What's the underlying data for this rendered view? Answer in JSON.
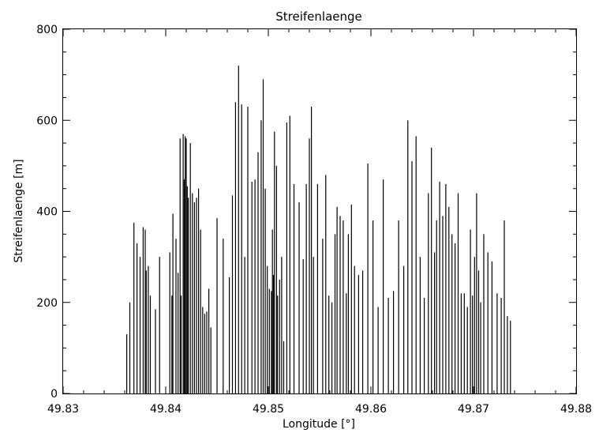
{
  "chart_data": {
    "type": "bar",
    "title": "Streifenlaenge",
    "xlabel": "Longitude [°]",
    "ylabel": "Streifenlaenge [m]",
    "xlim": [
      49.83,
      49.88
    ],
    "ylim": [
      0,
      800
    ],
    "xticks": [
      49.83,
      49.84,
      49.85,
      49.86,
      49.87,
      49.88
    ],
    "xtick_labels": [
      "49.83",
      "49.84",
      "49.85",
      "49.86",
      "49.87",
      "49.88"
    ],
    "yticks": [
      0,
      200,
      400,
      600,
      800
    ],
    "ytick_labels": [
      "0",
      "200",
      "400",
      "600",
      "800"
    ],
    "grid": false,
    "legend": "none",
    "bar_color": "#000000",
    "x": [
      49.8362,
      49.8365,
      49.8369,
      49.8372,
      49.8375,
      49.8378,
      49.838,
      49.8381,
      49.8383,
      49.8385,
      49.839,
      49.8394,
      49.8404,
      49.8406,
      49.8407,
      49.841,
      49.8412,
      49.8414,
      49.8415,
      49.8417,
      49.8418,
      49.8419,
      49.842,
      49.8421,
      49.8422,
      49.8424,
      49.8426,
      49.8428,
      49.843,
      49.8432,
      49.8434,
      49.8436,
      49.8438,
      49.844,
      49.8442,
      49.8444,
      49.845,
      49.8456,
      49.8462,
      49.8465,
      49.8468,
      49.8471,
      49.8474,
      49.8477,
      49.848,
      49.8484,
      49.8487,
      49.849,
      49.8493,
      49.8495,
      49.8497,
      49.8499,
      49.8501,
      49.8503,
      49.8504,
      49.8505,
      49.8506,
      49.8508,
      49.8509,
      49.8511,
      49.8513,
      49.8515,
      49.8518,
      49.8521,
      49.8525,
      49.853,
      49.8534,
      49.8537,
      49.854,
      49.8542,
      49.8544,
      49.8548,
      49.8553,
      49.8556,
      49.8559,
      49.8562,
      49.8565,
      49.8567,
      49.857,
      49.8573,
      49.8576,
      49.8578,
      49.8581,
      49.8584,
      49.8588,
      49.8592,
      49.8597,
      49.8602,
      49.8607,
      49.8612,
      49.8617,
      49.8622,
      49.8627,
      49.8632,
      49.8636,
      49.864,
      49.8644,
      49.8648,
      49.8652,
      49.8656,
      49.8659,
      49.8662,
      49.8664,
      49.8667,
      49.867,
      49.8673,
      49.8676,
      49.8679,
      49.8682,
      49.8685,
      49.8688,
      49.8691,
      49.8694,
      49.8697,
      49.8699,
      49.8701,
      49.8703,
      49.8705,
      49.8707,
      49.871,
      49.8714,
      49.8718,
      49.8723,
      49.8727,
      49.873,
      49.8733,
      49.8736
    ],
    "values": [
      130,
      200,
      375,
      330,
      300,
      365,
      360,
      270,
      280,
      215,
      185,
      300,
      310,
      215,
      395,
      340,
      265,
      560,
      215,
      570,
      470,
      565,
      560,
      455,
      430,
      550,
      440,
      420,
      430,
      450,
      360,
      190,
      175,
      180,
      230,
      145,
      385,
      340,
      255,
      435,
      640,
      720,
      635,
      300,
      630,
      465,
      470,
      530,
      600,
      690,
      450,
      280,
      230,
      225,
      360,
      260,
      575,
      500,
      215,
      250,
      300,
      115,
      595,
      610,
      460,
      420,
      295,
      460,
      560,
      630,
      300,
      460,
      340,
      480,
      215,
      200,
      350,
      410,
      390,
      380,
      220,
      350,
      415,
      280,
      260,
      270,
      505,
      380,
      190,
      470,
      210,
      225,
      380,
      280,
      600,
      510,
      565,
      300,
      210,
      440,
      540,
      310,
      380,
      465,
      390,
      460,
      410,
      350,
      330,
      440,
      220,
      220,
      190,
      360,
      215,
      300,
      440,
      270,
      200,
      350,
      310,
      290,
      220,
      210,
      380,
      170,
      160
    ]
  }
}
